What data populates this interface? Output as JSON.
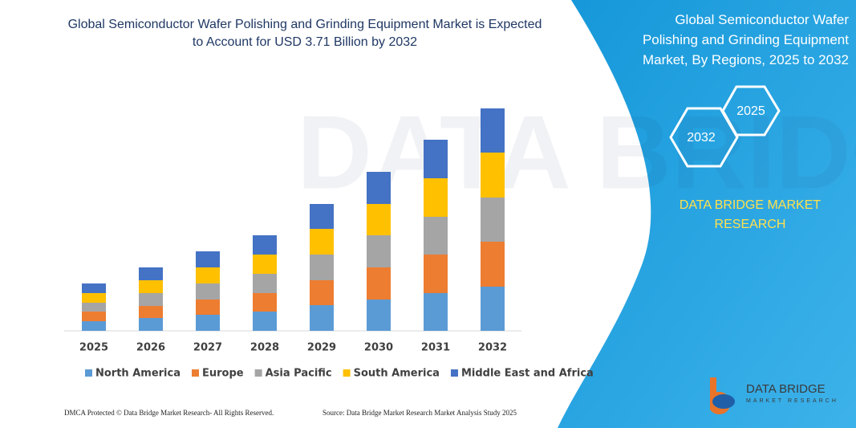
{
  "chart_data": {
    "type": "stacked-bar",
    "title": "Global Semiconductor Wafer Polishing and Grinding Equipment Market is Expected to Account for USD 3.71 Billion by 2032",
    "categories": [
      "2025",
      "2026",
      "2027",
      "2028",
      "2029",
      "2030",
      "2031",
      "2032"
    ],
    "series": [
      {
        "name": "North America",
        "color": "#5b9bd5",
        "values": [
          12,
          16,
          20,
          24,
          32,
          39,
          47,
          55
        ]
      },
      {
        "name": "Europe",
        "color": "#ed7d31",
        "values": [
          12,
          15,
          19,
          23,
          31,
          40,
          48,
          56
        ]
      },
      {
        "name": "Asia Pacific",
        "color": "#a5a5a5",
        "values": [
          11,
          16,
          20,
          24,
          32,
          40,
          47,
          55
        ]
      },
      {
        "name": "South America",
        "color": "#ffc000",
        "values": [
          12,
          16,
          20,
          24,
          32,
          39,
          48,
          56
        ]
      },
      {
        "name": "Middle East and Africa",
        "color": "#4472c4",
        "values": [
          12,
          16,
          20,
          24,
          31,
          40,
          48,
          55
        ]
      }
    ]
  },
  "side_panel": {
    "title": "Global Semiconductor Wafer Polishing and Grinding Equipment Market, By Regions, 2025 to 2032",
    "year_start": "2025",
    "year_end": "2032",
    "brand": "DATA BRIDGE MARKET RESEARCH"
  },
  "logo": {
    "name": "DATA BRIDGE",
    "tagline": "MARKET RESEARCH"
  },
  "footer": {
    "left": "DMCA Protected © Data Bridge Market Research- All Rights Reserved.",
    "right": "Source: Data Bridge Market Research Market Analysis Study 2025"
  }
}
